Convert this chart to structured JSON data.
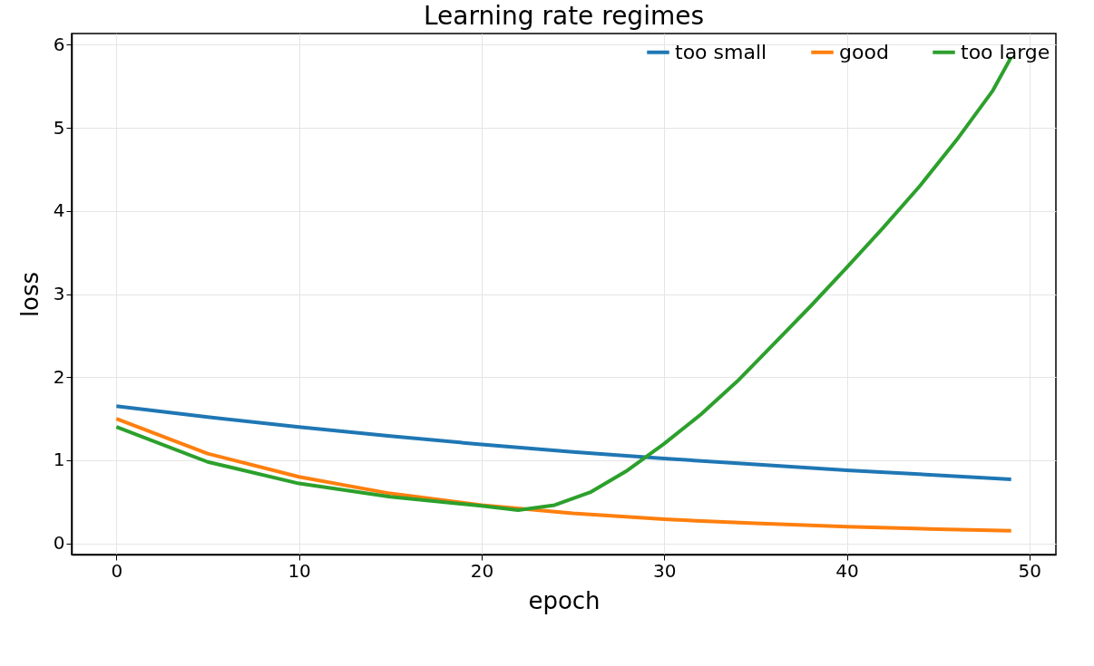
{
  "chart_data": {
    "type": "line",
    "title": "Learning rate regimes",
    "xlabel": "epoch",
    "ylabel": "loss",
    "xlim": [
      -2.45,
      51.45
    ],
    "xticks": [
      0,
      10,
      20,
      30,
      40,
      50
    ],
    "ylim": [
      -0.135,
      6.135
    ],
    "yticks": [
      0,
      1,
      2,
      3,
      4,
      5,
      6
    ],
    "grid": true,
    "legend": "top right",
    "line_style": "solid",
    "marker": "none",
    "series": [
      {
        "name": "too small",
        "color": "#1f77b4",
        "x": [
          0,
          5,
          10,
          15,
          20,
          25,
          30,
          35,
          40,
          45,
          49
        ],
        "values": [
          1.65,
          1.52,
          1.4,
          1.29,
          1.19,
          1.1,
          1.02,
          0.95,
          0.88,
          0.82,
          0.77
        ]
      },
      {
        "name": "good",
        "color": "#ff7f0e",
        "x": [
          0,
          5,
          10,
          15,
          20,
          25,
          30,
          35,
          40,
          45,
          49
        ],
        "values": [
          1.5,
          1.08,
          0.8,
          0.6,
          0.46,
          0.36,
          0.29,
          0.24,
          0.2,
          0.17,
          0.15
        ]
      },
      {
        "name": "too large",
        "color": "#2ca02c",
        "x": [
          0,
          5,
          10,
          15,
          20,
          22,
          24,
          26,
          28,
          30,
          32,
          34,
          36,
          38,
          40,
          42,
          44,
          46,
          48,
          49
        ],
        "values": [
          1.4,
          0.98,
          0.72,
          0.56,
          0.45,
          0.4,
          0.46,
          0.62,
          0.88,
          1.2,
          1.55,
          1.95,
          2.4,
          2.85,
          3.32,
          3.8,
          4.3,
          4.85,
          5.45,
          5.85
        ]
      }
    ]
  }
}
